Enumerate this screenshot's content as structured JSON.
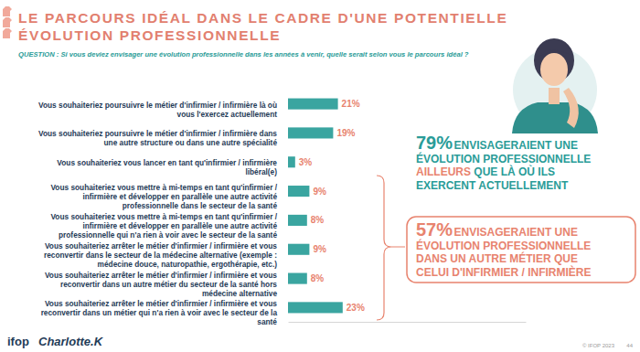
{
  "chart_data": {
    "type": "bar",
    "orientation": "horizontal",
    "title": "LE PARCOURS IDÉAL DANS LE CADRE D'UNE POTENTIELLE ÉVOLUTION PROFESSIONNELLE",
    "subtitle": "QUESTION : Si vous deviez envisager une évolution professionnelle dans les années à venir, quelle serait selon vous le parcours idéal ?",
    "categories": [
      "Vous souhaiteriez poursuivre le métier d'infirmier / infirmière là où vous l'exercez actuellement",
      "Vous souhaiteriez poursuivre le métier d'infirmier / infirmière dans une autre structure ou dans une autre spécialité",
      "Vous souhaiteriez vous lancer en tant qu'infirmier / infirmière libéral(e)",
      "Vous souhaiteriez vous mettre à mi-temps en tant qu'infirmier / infirmière et développer en parallèle une autre activité professionnelle dans le secteur de la santé",
      "Vous souhaiteriez vous mettre à mi-temps en tant qu'infirmier / infirmière et développer en parallèle une autre activité professionnelle qui n'a rien à voir avec le secteur de la santé",
      "Vous souhaiteriez arrêter le métier d'infirmier / infirmière et vous reconvertir dans le secteur de la médecine alternative (exemple : médecine douce, naturopathie, ergothérapie, etc.)",
      "Vous souhaiteriez arrêter le métier d'infirmier / infirmière et vous reconvertir dans un autre métier du secteur de la santé hors médecine alternative",
      "Vous souhaiteriez arrêter le métier d'infirmier / infirmière et vous reconvertir dans un métier qui n'a rien à voir avec le secteur de la santé"
    ],
    "values": [
      21,
      19,
      3,
      9,
      8,
      9,
      8,
      23
    ],
    "value_labels": [
      "21%",
      "19%",
      "3%",
      "9%",
      "8%",
      "9%",
      "8%",
      "23%"
    ],
    "color": "#3aa5a0",
    "xlim": [
      0,
      100
    ],
    "data_labels": true,
    "tick_labels": "y",
    "grid": false,
    "annotations": [
      {
        "label": "79%",
        "color": "#2a9c98",
        "lines": [
          [
            {
              "text": "ENVISAGERAIENT UNE"
            }
          ],
          [
            {
              "text": "ÉVOLUTION PROFESSIONNELLE"
            }
          ],
          [
            {
              "text": "AILLEURS",
              "color": "#e8836e"
            },
            {
              "text": " QUE LÀ OÙ ILS"
            }
          ],
          [
            {
              "text": "EXERCENT ACTUELLEMENT"
            }
          ]
        ]
      },
      {
        "label": "57%",
        "color": "#e8836e",
        "lines": [
          [
            {
              "text": "ENVISAGERAIENT UNE"
            }
          ],
          [
            {
              "text": "ÉVOLUTION PROFESSIONNELLE"
            }
          ],
          [
            {
              "text": "DANS UN AUTRE MÉTIER QUE"
            }
          ],
          [
            {
              "text": "CELUI D'INFIRMIER / INFIRMIÈRE"
            }
          ]
        ]
      }
    ]
  },
  "footer": {
    "logos": [
      "ifop",
      "Charlotte.K"
    ],
    "copyright": "© IFOP 2023",
    "page": "44"
  }
}
